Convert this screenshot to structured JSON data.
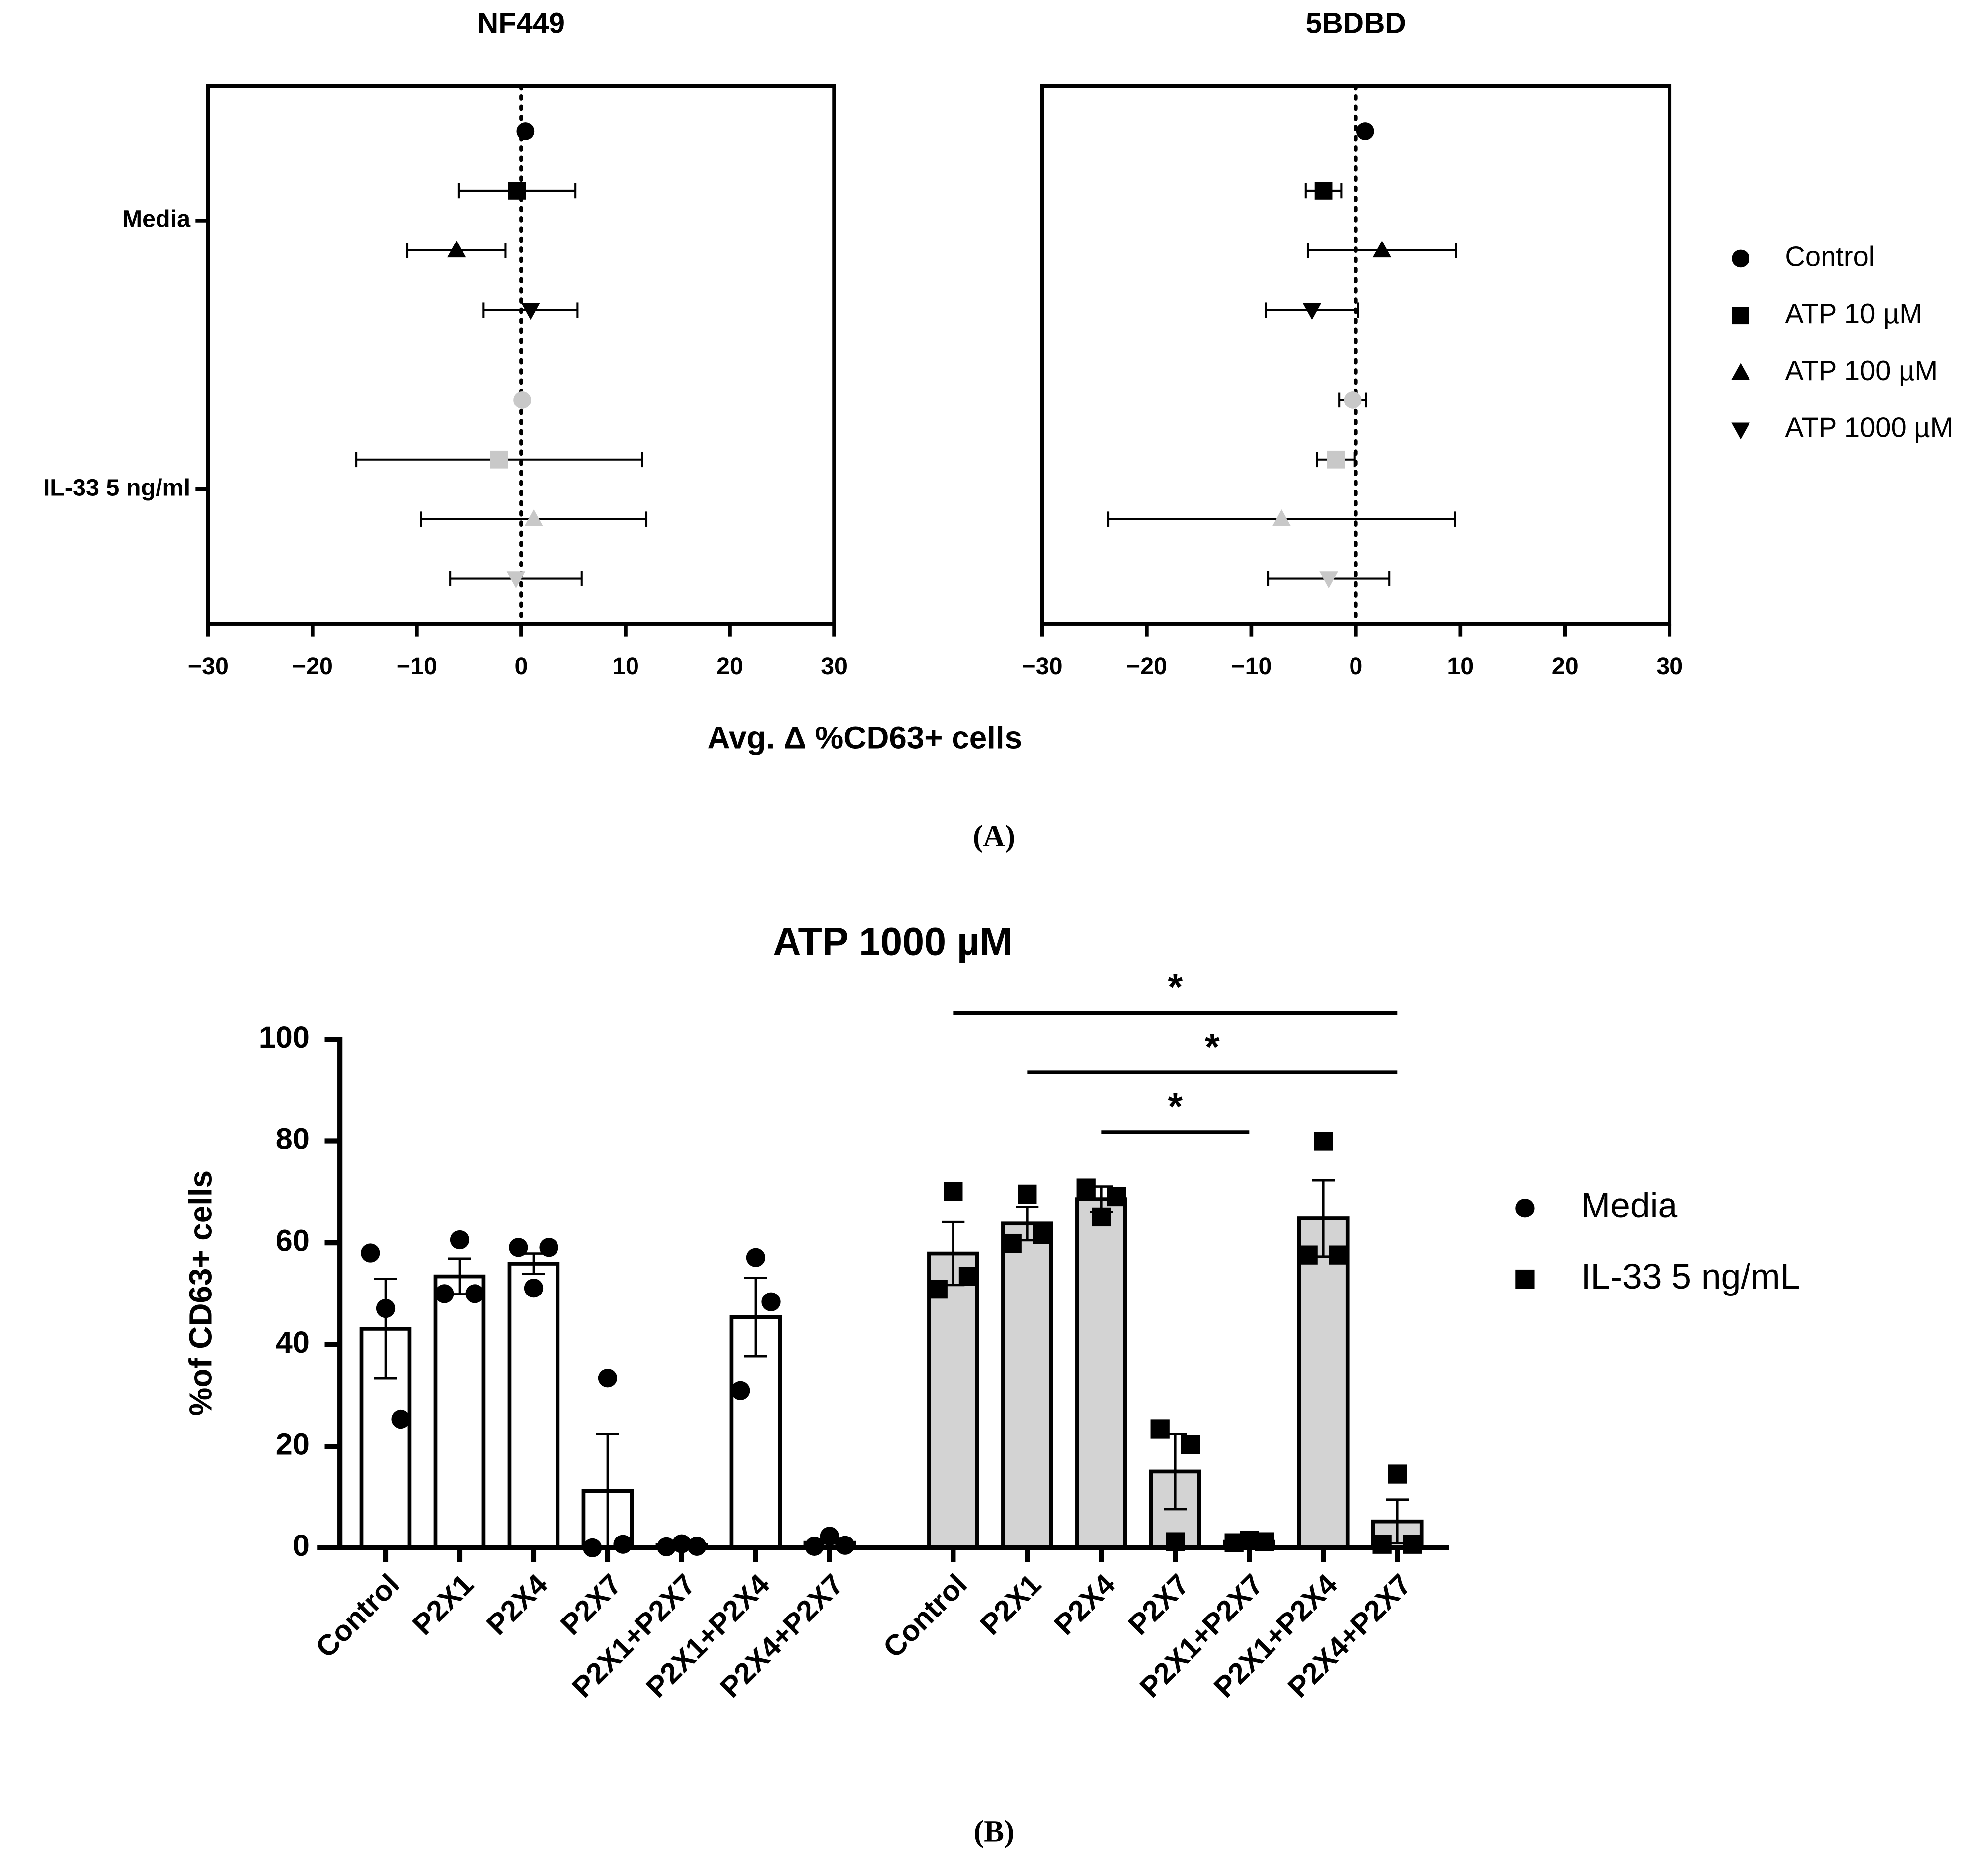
{
  "chart_data": [
    {
      "type": "dot_errorbar",
      "label": "(A)",
      "xlabel": "Avg. Δ %CD63+ cells",
      "categories": [
        "Media",
        "IL-33 5 ng/ml"
      ],
      "category_colors": [
        "#000000",
        "#c8c8c8"
      ],
      "series": [
        {
          "name": "Control",
          "marker": "circle"
        },
        {
          "name": "ATP 10 µM",
          "marker": "square"
        },
        {
          "name": "ATP 100 µM",
          "marker": "triangle-up"
        },
        {
          "name": "ATP 1000 µM",
          "marker": "triangle-down"
        }
      ],
      "legend_color": "#000000",
      "panels": [
        {
          "title": "NF449",
          "xlim": [
            -30,
            30
          ],
          "xticks": [
            {
              "value": -30,
              "label": "−30"
            },
            {
              "value": -20,
              "label": "−20"
            },
            {
              "value": -10,
              "label": "−10"
            },
            0,
            10,
            20,
            30
          ],
          "refline": 0,
          "series": [
            {
              "values": [
                0.4,
                0.1
              ],
              "errors": [
                null,
                null
              ]
            },
            {
              "values": [
                -0.4,
                -2.1
              ],
              "errors": [
                5.6,
                13.7
              ]
            },
            {
              "values": [
                -6.2,
                1.2
              ],
              "errors": [
                4.7,
                10.8
              ]
            },
            {
              "values": [
                0.9,
                -0.5
              ],
              "errors": [
                4.5,
                6.3
              ]
            }
          ]
        },
        {
          "title": "5BDBD",
          "xlim": [
            -30,
            30
          ],
          "xticks": [
            {
              "value": -30,
              "label": "−30"
            },
            {
              "value": -20,
              "label": "−20"
            },
            {
              "value": -10,
              "label": "−10"
            },
            0,
            10,
            20,
            30
          ],
          "refline": 0,
          "series": [
            {
              "values": [
                0.9,
                -0.3
              ],
              "errors": [
                null,
                1.3
              ]
            },
            {
              "values": [
                -3.1,
                -1.9
              ],
              "errors": [
                1.7,
                1.8
              ]
            },
            {
              "values": [
                2.5,
                -7.1
              ],
              "errors": [
                7.1,
                16.6
              ]
            },
            {
              "values": [
                -4.2,
                -2.6
              ],
              "errors": [
                4.4,
                5.8
              ]
            }
          ]
        }
      ]
    },
    {
      "type": "bar_scatter",
      "label": "(B)",
      "title": "ATP 1000 µM",
      "ylabel": "%of CD63+ cells",
      "categories": [
        "Control",
        "P2X1",
        "P2X4",
        "P2X7",
        "P2X1+P2X7",
        "P2X1+P2X4",
        "P2X4+P2X7"
      ],
      "ylim": [
        0,
        100
      ],
      "yticks": [
        0,
        20,
        40,
        60,
        80,
        100
      ],
      "point_color": "#000000",
      "series": [
        {
          "name": "Media",
          "marker": "circle",
          "color": "#ffffff",
          "values": [
            43.1,
            53.4,
            55.9,
            11.2,
            0.5,
            45.4,
            1.0
          ],
          "errors": [
            9.8,
            3.5,
            2.0,
            11.2,
            0.3,
            7.7,
            0.7
          ],
          "points": [
            [
              58.0,
              47.1,
              25.3
            ],
            [
              50.0,
              60.6,
              50.0
            ],
            [
              59.1,
              51.1,
              59.1
            ],
            [
              0.0,
              33.4,
              0.7
            ],
            [
              0.2,
              0.8,
              0.3
            ],
            [
              30.9,
              57.1,
              48.4
            ],
            [
              0.3,
              2.3,
              0.5
            ]
          ]
        },
        {
          "name": "IL-33 5 ng/mL",
          "marker": "square",
          "color": "#d3d3d3",
          "values": [
            57.9,
            63.8,
            68.6,
            15.0,
            1.2,
            64.8,
            5.2
          ],
          "errors": [
            6.2,
            3.3,
            2.5,
            7.4,
            0.4,
            7.5,
            4.3
          ],
          "points": [
            [
              50.9,
              70.1,
              53.4
            ],
            [
              59.9,
              69.6,
              61.6
            ],
            [
              70.8,
              65.1,
              69.1
            ],
            [
              23.4,
              1.2,
              20.4
            ],
            [
              1.0,
              1.5,
              1.2
            ],
            [
              57.6,
              80.0,
              57.6
            ],
            [
              0.7,
              14.5,
              0.7
            ]
          ]
        }
      ],
      "significance": [
        {
          "from": "Control",
          "to": "P2X4+P2X7",
          "label": "*"
        },
        {
          "from": "P2X1",
          "to": "P2X4+P2X7",
          "label": "*"
        },
        {
          "from": "P2X4",
          "to": "P2X1+P2X7",
          "label": "*"
        }
      ]
    }
  ]
}
